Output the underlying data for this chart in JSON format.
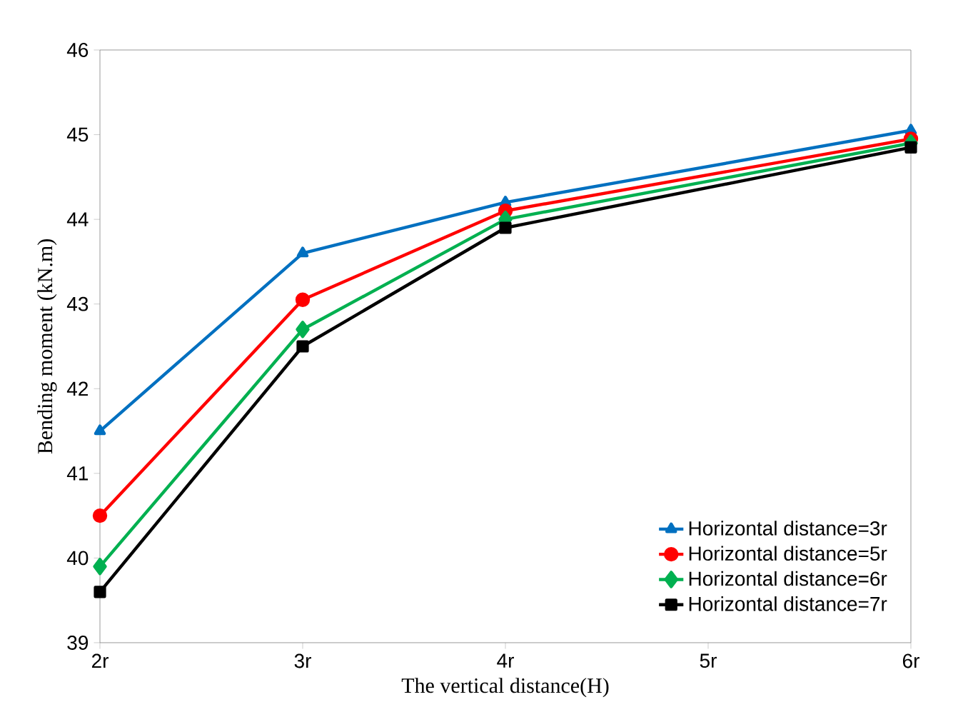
{
  "chart_data": {
    "type": "line",
    "xlabel": "The vertical distance(H)",
    "ylabel": "Bending moment (kN.m)",
    "categories": [
      "2r",
      "3r",
      "4r",
      "5r",
      "6r"
    ],
    "series": [
      {
        "name": "Horizontal distance=3r",
        "color": "#0070c0",
        "marker": "triangle",
        "values": [
          41.5,
          43.6,
          44.2,
          null,
          45.05
        ]
      },
      {
        "name": "Horizontal distance=5r",
        "color": "#ff0000",
        "marker": "circle",
        "values": [
          40.5,
          43.05,
          44.1,
          null,
          44.95
        ]
      },
      {
        "name": "Horizontal distance=6r",
        "color": "#00b050",
        "marker": "diamond",
        "values": [
          39.9,
          42.7,
          44.0,
          null,
          44.9
        ]
      },
      {
        "name": "Horizontal distance=7r",
        "color": "#000000",
        "marker": "square",
        "values": [
          39.6,
          42.5,
          43.9,
          null,
          44.85
        ]
      }
    ],
    "ylim": [
      39,
      46
    ],
    "yticks": [
      39,
      40,
      41,
      42,
      43,
      44,
      45,
      46
    ],
    "grid": false,
    "legend": "bottom right",
    "line_style": "solid"
  }
}
